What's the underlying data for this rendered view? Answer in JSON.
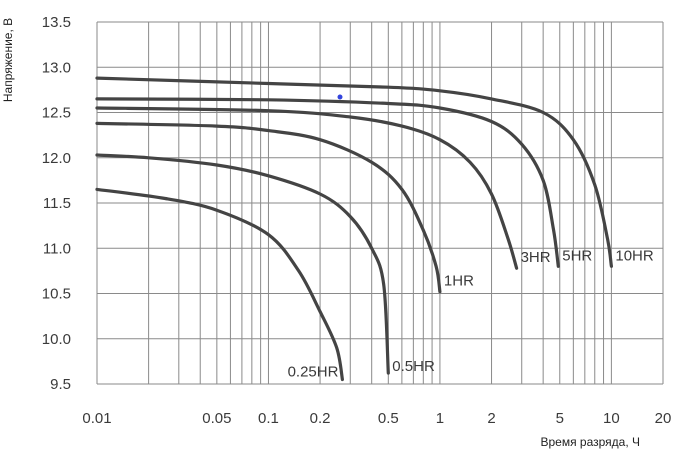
{
  "chart_data": {
    "type": "line",
    "xlabel": "Время разряда, Ч",
    "ylabel": "Напряжение, В",
    "x_scale": "log",
    "xlim": [
      0.01,
      20
    ],
    "ylim": [
      9.5,
      13.5
    ],
    "grid": true,
    "x_tick_labels": [
      "0.01",
      "0.05",
      "0.1",
      "0.2",
      "0.5",
      "1",
      "2",
      "5",
      "10",
      "20"
    ],
    "y_tick_labels": [
      "9.5",
      "10.0",
      "10.5",
      "11.0",
      "11.5",
      "12.0",
      "12.5",
      "13.0",
      "13.5"
    ],
    "series": [
      {
        "name": "0.25HR",
        "label": "0.25HR",
        "x": [
          0.01,
          0.025,
          0.05,
          0.1,
          0.15,
          0.2,
          0.25,
          0.27
        ],
        "y": [
          11.65,
          11.55,
          11.42,
          11.15,
          10.75,
          10.3,
          9.9,
          9.55
        ]
      },
      {
        "name": "0.5HR",
        "label": "0.5HR",
        "x": [
          0.01,
          0.02,
          0.05,
          0.1,
          0.2,
          0.3,
          0.4,
          0.47,
          0.5
        ],
        "y": [
          12.03,
          12.0,
          11.92,
          11.8,
          11.6,
          11.35,
          11.0,
          10.6,
          9.62
        ]
      },
      {
        "name": "1HR",
        "label": "1HR",
        "x": [
          0.01,
          0.05,
          0.1,
          0.2,
          0.4,
          0.6,
          0.8,
          0.95,
          1.0
        ],
        "y": [
          12.38,
          12.35,
          12.3,
          12.2,
          11.95,
          11.65,
          11.2,
          10.8,
          10.52
        ]
      },
      {
        "name": "3HR",
        "label": "3HR",
        "x": [
          0.01,
          0.1,
          0.3,
          0.6,
          1.0,
          1.5,
          2.0,
          2.5,
          2.8
        ],
        "y": [
          12.55,
          12.52,
          12.45,
          12.35,
          12.2,
          11.95,
          11.6,
          11.1,
          10.78
        ]
      },
      {
        "name": "5HR",
        "label": "5HR",
        "x": [
          0.01,
          0.1,
          0.5,
          1.0,
          2.0,
          3.0,
          4.0,
          4.6,
          4.9
        ],
        "y": [
          12.65,
          12.64,
          12.6,
          12.55,
          12.4,
          12.15,
          11.75,
          11.2,
          10.8
        ]
      },
      {
        "name": "10HR",
        "label": "10HR",
        "x": [
          0.01,
          0.1,
          0.5,
          1.0,
          2.0,
          4.0,
          6.0,
          8.0,
          9.5,
          10.0
        ],
        "y": [
          12.88,
          12.82,
          12.78,
          12.74,
          12.65,
          12.5,
          12.2,
          11.7,
          11.1,
          10.8
        ]
      }
    ]
  }
}
